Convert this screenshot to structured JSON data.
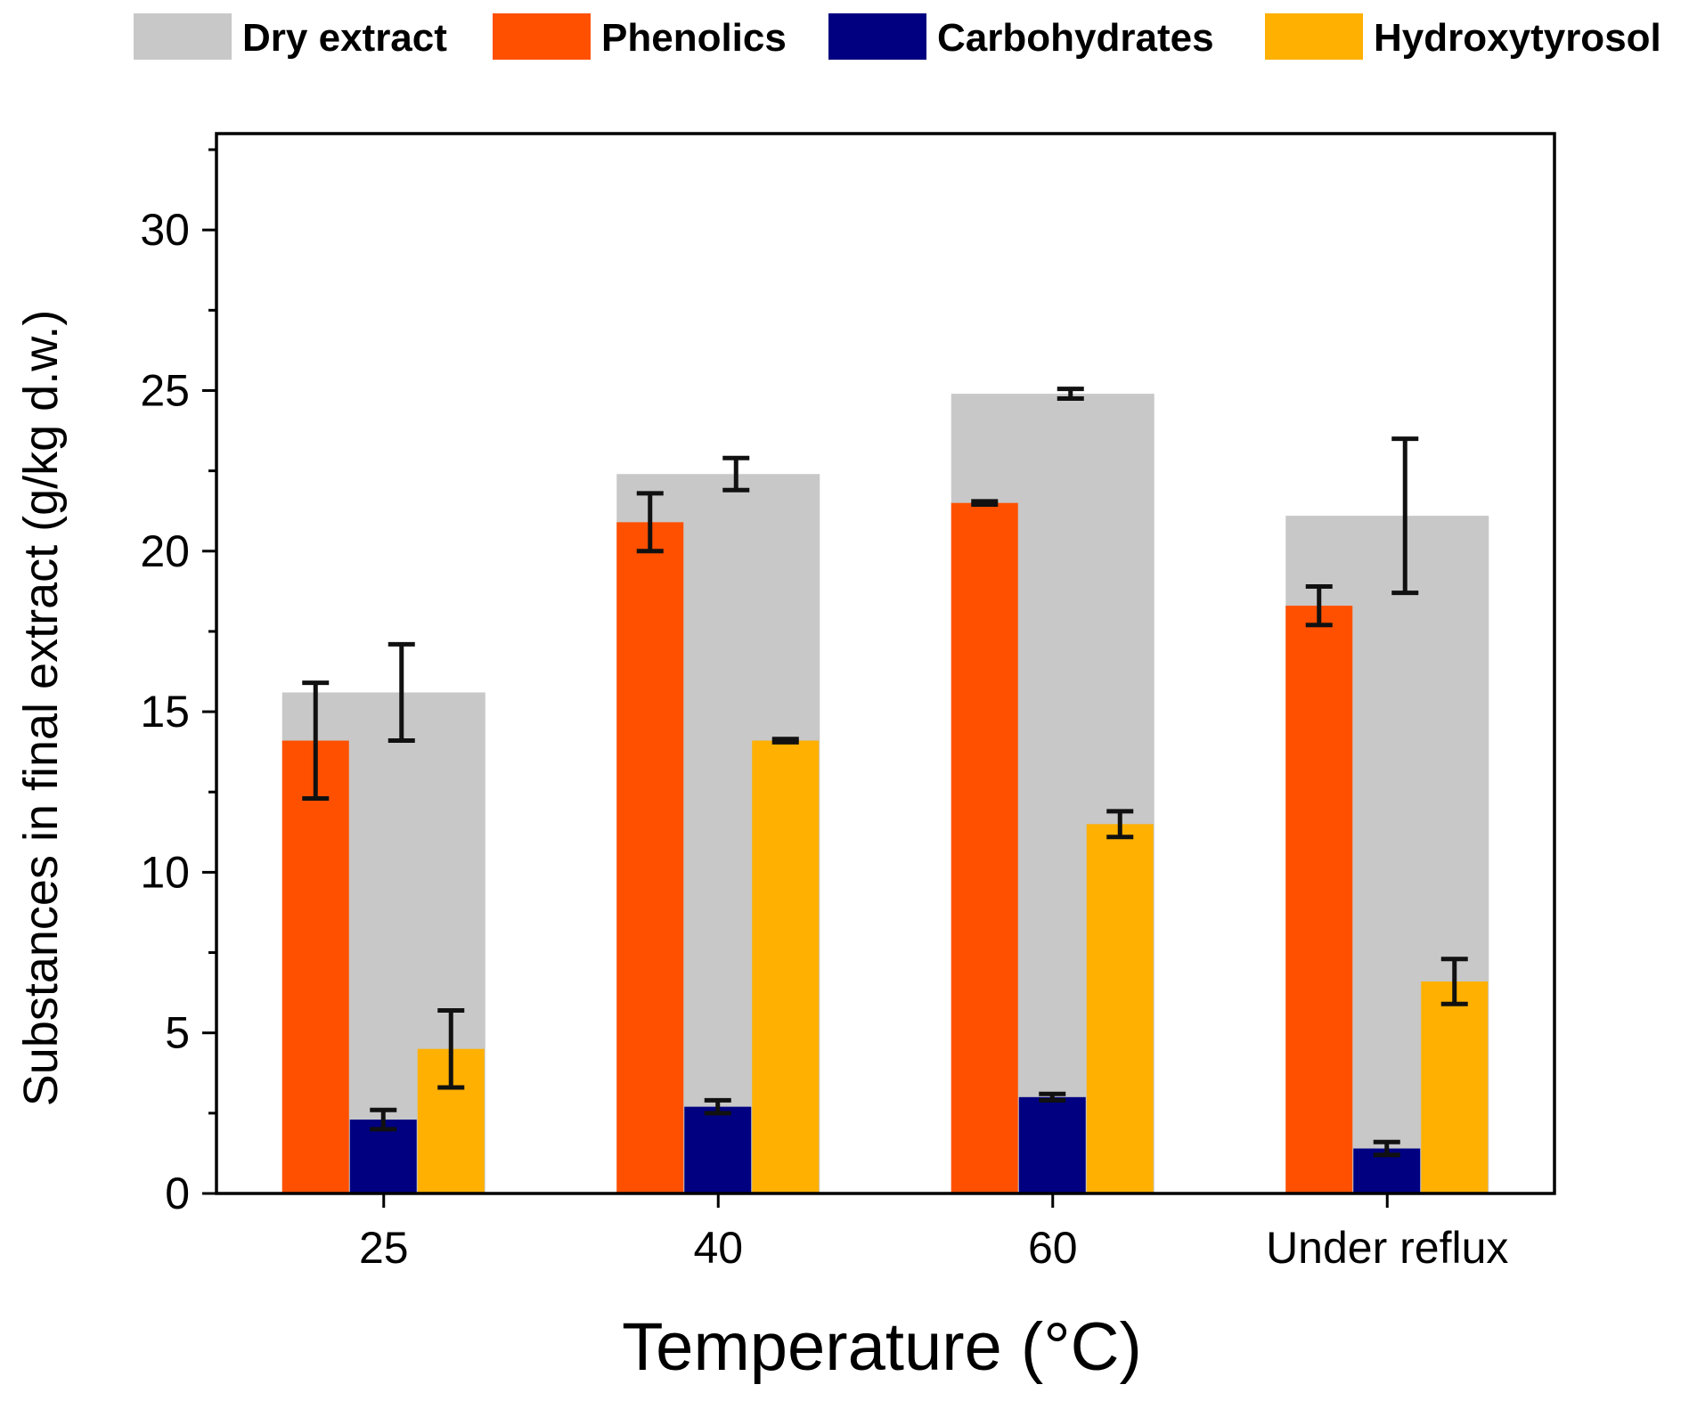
{
  "chart_data": {
    "type": "bar",
    "title": "",
    "xlabel": "Temperature (°C)",
    "ylabel": "Substances in final extract (g/kg d.w.)",
    "categories": [
      "25",
      "40",
      "60",
      "Under reflux"
    ],
    "ylim": [
      0,
      33
    ],
    "yticks": [
      0,
      5,
      10,
      15,
      20,
      25,
      30
    ],
    "ytick_labels": [
      "0",
      "5",
      "10",
      "15",
      "20",
      "25",
      "30"
    ],
    "grid": false,
    "legend_position": "top",
    "background_series": {
      "name": "Dry extract",
      "color": "#c8c8c8",
      "values": [
        15.6,
        22.4,
        24.9,
        21.1
      ],
      "errors": [
        1.5,
        0.5,
        0.15,
        2.4
      ]
    },
    "series": [
      {
        "name": "Phenolics",
        "color": "#ff5000",
        "values": [
          14.1,
          20.9,
          21.5,
          18.3
        ],
        "errors": [
          1.8,
          0.9,
          0.05,
          0.6
        ]
      },
      {
        "name": "Carbohydrates",
        "color": "#000080",
        "values": [
          2.3,
          2.7,
          3.0,
          1.4
        ],
        "errors": [
          0.3,
          0.2,
          0.1,
          0.2
        ]
      },
      {
        "name": "Hydroxytyrosol",
        "color": "#ffb000",
        "values": [
          4.5,
          14.1,
          11.5,
          6.6
        ],
        "errors": [
          1.2,
          0.05,
          0.4,
          0.7
        ]
      }
    ]
  }
}
